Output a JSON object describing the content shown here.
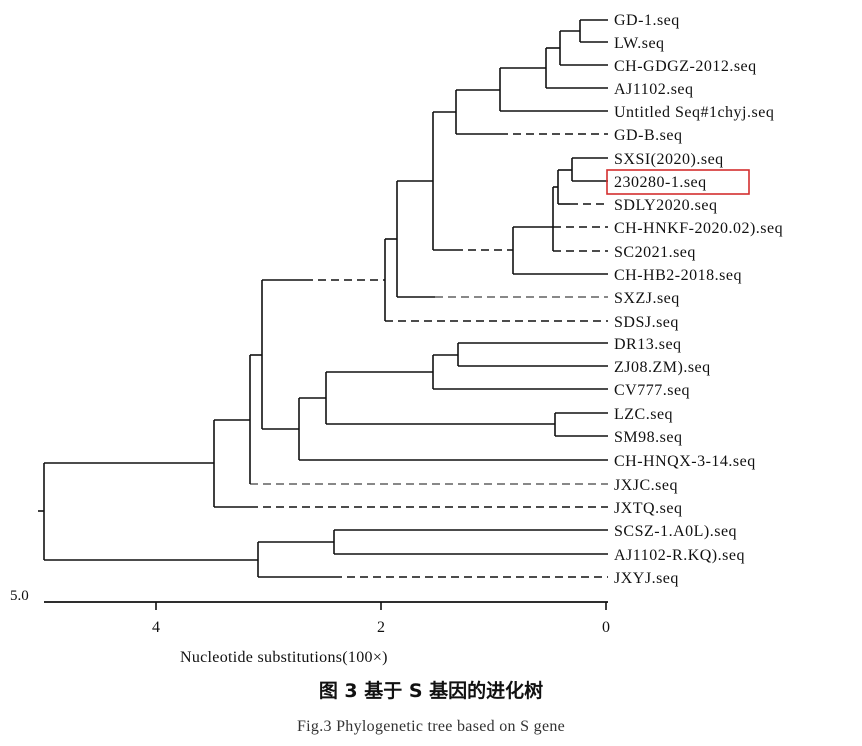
{
  "caption": {
    "zh": "图 3   基于 S 基因的进化树",
    "en": "Fig.3   Phylogenetic tree based on S gene"
  },
  "axis": {
    "title": "Nucleotide substitutions(100×)",
    "scale_label": "5.0",
    "ticks": [
      "4",
      "2",
      "0"
    ]
  },
  "leaves": [
    "GD-1.seq",
    "LW.seq",
    "CH-GDGZ-2012.seq",
    "AJ1102.seq",
    "Untitled Seq#1chyj.seq",
    "GD-B.seq",
    "SXSI(2020).seq",
    "230280-1.seq",
    "SDLY2020.seq",
    "CH-HNKF-2020.02).seq",
    "SC2021.seq",
    "CH-HB2-2018.seq",
    "SXZJ.seq",
    "SDSJ.seq",
    "DR13.seq",
    "ZJ08.ZM).seq",
    "CV777.seq",
    "LZC.seq",
    "SM98.seq",
    "CH-HNQX-3-14.seq",
    "JXJC.seq",
    "JXTQ.seq",
    "SCSZ-1.A0L).seq",
    "AJ1102-R.KQ).seq",
    "JXYJ.seq"
  ],
  "highlighted_leaf": "230280-1.seq",
  "colors": {
    "line": "#111111",
    "highlight_box": "#d32f2f"
  }
}
